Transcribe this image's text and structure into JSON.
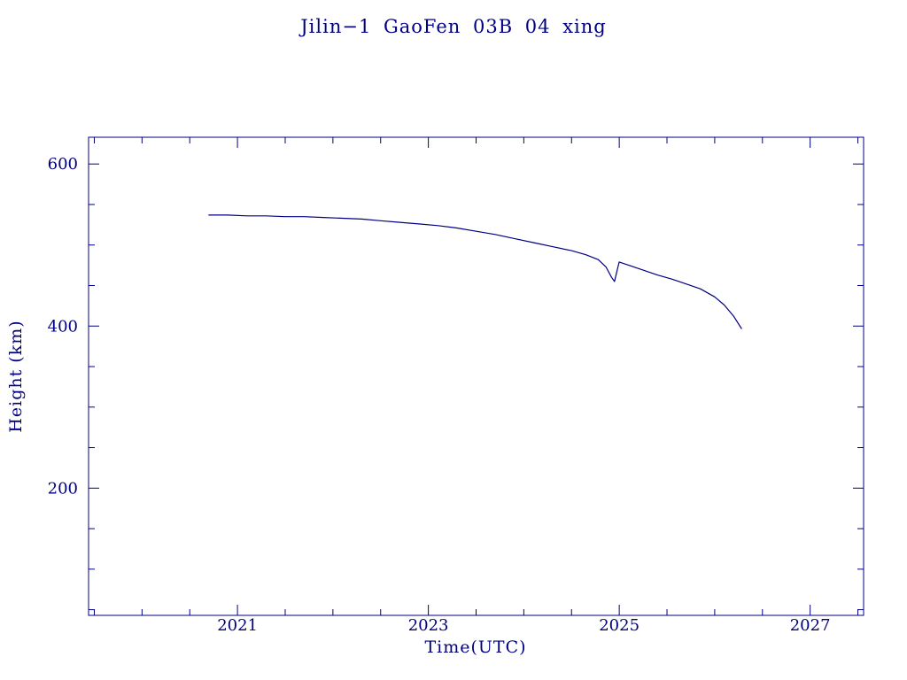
{
  "colors": {
    "axis": "#000080",
    "text": "#000080",
    "background": "#ffffff"
  },
  "chart_data": {
    "type": "line",
    "title": "Jilin−1 GaoFen 03B 04 xing",
    "xlabel": "Time(UTC)",
    "ylabel": "Height (km)",
    "xlim": [
      2019.44,
      2027.56
    ],
    "ylim": [
      43,
      633
    ],
    "x_ticks": [
      2021,
      2023,
      2025,
      2027
    ],
    "y_ticks": [
      200,
      400,
      600
    ],
    "x_minor_step": 0.5,
    "y_minor_step": 50,
    "grid": false,
    "legend": false,
    "line_color": "#000080",
    "series": [
      {
        "name": "height",
        "x": [
          2020.7,
          2020.9,
          2021.1,
          2021.3,
          2021.5,
          2021.7,
          2021.9,
          2022.1,
          2022.3,
          2022.5,
          2022.7,
          2022.9,
          2023.1,
          2023.3,
          2023.5,
          2023.7,
          2023.9,
          2024.1,
          2024.3,
          2024.5,
          2024.65,
          2024.78,
          2024.86,
          2024.92,
          2024.95,
          2024.98,
          2025.0,
          2025.1,
          2025.25,
          2025.4,
          2025.55,
          2025.7,
          2025.85,
          2026.0,
          2026.1,
          2026.2,
          2026.28
        ],
        "y": [
          537,
          537,
          536,
          536,
          535,
          535,
          534,
          533,
          532,
          530,
          528,
          526,
          524,
          521,
          517,
          513,
          508,
          503,
          498,
          493,
          488,
          482,
          473,
          460,
          455,
          470,
          479,
          475,
          469,
          463,
          458,
          452,
          446,
          436,
          426,
          412,
          397
        ]
      }
    ]
  }
}
